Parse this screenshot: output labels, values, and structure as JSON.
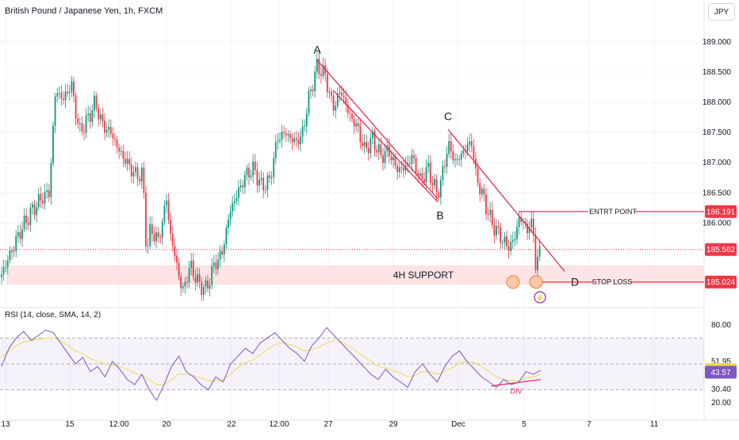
{
  "header": {
    "title": "British Pound / Japanese Yen, 1h, FXCM",
    "currency_button": "JPY"
  },
  "rsi": {
    "title": "RSI (14, close, SMA, 14, 2)"
  },
  "colors": {
    "up": "#089981",
    "down": "#f23645",
    "annotation": "#e0244a",
    "rsi_line": "#7e57c2",
    "rsi_ma": "#f2d94e",
    "support_zone": "#fbd9d9",
    "grid": "#f0f3fa",
    "price_label": "#f23645"
  },
  "chart_data": [
    {
      "type": "candlestick",
      "title": "British Pound / Japanese Yen, 1h, FXCM",
      "xlabel": "",
      "ylabel": "",
      "x_tick_labels": [
        "13",
        "15",
        "12:00",
        "20",
        "22",
        "12:00",
        "27",
        "29",
        "Dec",
        "5",
        "7",
        "11"
      ],
      "y_ticks": [
        189.0,
        188.5,
        188.0,
        187.5,
        187.0,
        186.5,
        186.0
      ],
      "y_tick_labels": [
        "189.000",
        "188.500",
        "188.000",
        "187.500",
        "187.000",
        "186.500",
        "186.000"
      ],
      "ylim": [
        184.6,
        189.3
      ],
      "grid": true,
      "price_path": [
        [
          0,
          185.1
        ],
        [
          10,
          185.4
        ],
        [
          25,
          185.85
        ],
        [
          40,
          186.2
        ],
        [
          55,
          186.45
        ],
        [
          62,
          186.5
        ],
        [
          70,
          188.2
        ],
        [
          80,
          188.05
        ],
        [
          90,
          188.3
        ],
        [
          100,
          187.5
        ],
        [
          110,
          187.7
        ],
        [
          120,
          188.0
        ],
        [
          130,
          187.6
        ],
        [
          140,
          187.5
        ],
        [
          150,
          187.2
        ],
        [
          160,
          187.0
        ],
        [
          170,
          186.8
        ],
        [
          180,
          186.8
        ],
        [
          185,
          185.5
        ],
        [
          190,
          185.9
        ],
        [
          200,
          185.7
        ],
        [
          210,
          186.4
        ],
        [
          215,
          185.8
        ],
        [
          220,
          185.5
        ],
        [
          230,
          184.85
        ],
        [
          240,
          185.3
        ],
        [
          250,
          185.0
        ],
        [
          260,
          184.9
        ],
        [
          270,
          185.3
        ],
        [
          280,
          185.5
        ],
        [
          290,
          186.2
        ],
        [
          300,
          186.5
        ],
        [
          310,
          186.8
        ],
        [
          320,
          186.9
        ],
        [
          330,
          186.6
        ],
        [
          340,
          186.7
        ],
        [
          350,
          187.4
        ],
        [
          360,
          187.5
        ],
        [
          370,
          187.35
        ],
        [
          380,
          187.4
        ],
        [
          390,
          188.1
        ],
        [
          400,
          188.6
        ],
        [
          410,
          188.45
        ],
        [
          420,
          187.9
        ],
        [
          430,
          188.2
        ],
        [
          440,
          187.8
        ],
        [
          450,
          187.6
        ],
        [
          460,
          187.2
        ],
        [
          470,
          187.4
        ],
        [
          480,
          187.1
        ],
        [
          490,
          187.2
        ],
        [
          500,
          186.9
        ],
        [
          510,
          186.9
        ],
        [
          520,
          187.1
        ],
        [
          530,
          186.7
        ],
        [
          540,
          186.9
        ],
        [
          550,
          186.5
        ],
        [
          555,
          186.6
        ],
        [
          565,
          187.3
        ],
        [
          575,
          187.0
        ],
        [
          585,
          187.2
        ],
        [
          595,
          187.35
        ],
        [
          600,
          186.8
        ],
        [
          610,
          186.4
        ],
        [
          620,
          186.0
        ],
        [
          630,
          185.8
        ],
        [
          640,
          185.6
        ],
        [
          648,
          185.7
        ],
        [
          655,
          186.1
        ],
        [
          665,
          185.9
        ],
        [
          672,
          186.0
        ],
        [
          676,
          185.2
        ],
        [
          682,
          185.65
        ]
      ],
      "annotations": {
        "points": [
          {
            "label": "A",
            "x": 400,
            "price": 188.65
          },
          {
            "label": "B",
            "x": 555,
            "price": 186.3
          },
          {
            "label": "C",
            "x": 565,
            "price": 187.55
          },
          {
            "label": "D",
            "x": 715,
            "price": 185.2
          }
        ],
        "support_zone": {
          "label": "4H SUPPORT",
          "from": 184.98,
          "to": 185.3
        },
        "entry": {
          "label": "ENTRT POINT",
          "price": 186.191
        },
        "stop_loss": {
          "label": "STOP LOSS",
          "price": 185.024
        },
        "price_markers": [
          {
            "label": "186.191",
            "price": 186.191
          },
          {
            "label": "185.562",
            "price": 185.562
          },
          {
            "label": "185.024",
            "price": 185.024
          }
        ],
        "lightning_glyph": "⚡"
      }
    },
    {
      "type": "line",
      "title": "RSI (14, close, SMA, 14, 2)",
      "xlabel": "",
      "ylabel": "",
      "ylim": [
        14,
        86
      ],
      "y_tick_labels": [
        "80.00",
        "51.95",
        "30.40",
        "20.00"
      ],
      "y_ticks": [
        80,
        51.95,
        30.4,
        20
      ],
      "bands": {
        "upper": 70,
        "middle": 50,
        "lower": 30
      },
      "current_labels": [
        {
          "label": "45.65",
          "value": 45.65,
          "color": "#f2d94e"
        },
        {
          "label": "43.57",
          "value": 43.57,
          "color": "#7e57c2"
        }
      ],
      "obscured_tick": "40.00",
      "divergence_label": "DIV",
      "series": [
        {
          "values": [
            48,
            62,
            70,
            75,
            68,
            72,
            76,
            74,
            66,
            58,
            50,
            55,
            44,
            48,
            40,
            52,
            46,
            38,
            34,
            42,
            30,
            22,
            34,
            48,
            56,
            44,
            40,
            34,
            30,
            40,
            36,
            50,
            56,
            62,
            58,
            66,
            70,
            74,
            68,
            62,
            58,
            52,
            64,
            70,
            78,
            72,
            66,
            60,
            54,
            48,
            42,
            38,
            46,
            40,
            36,
            32,
            44,
            50,
            42,
            36,
            48,
            56,
            60,
            52,
            46,
            40,
            36,
            32,
            38,
            34,
            36,
            44,
            42,
            45
          ]
        },
        {
          "values": [
            55,
            60,
            64,
            67,
            68,
            69,
            70,
            70,
            68,
            64,
            60,
            58,
            54,
            52,
            50,
            49,
            48,
            46,
            43,
            41,
            38,
            34,
            34,
            38,
            42,
            42,
            41,
            39,
            37,
            37,
            38,
            42,
            47,
            51,
            53,
            57,
            61,
            65,
            66,
            65,
            63,
            60,
            61,
            63,
            66,
            68,
            67,
            64,
            60,
            56,
            52,
            48,
            47,
            45,
            43,
            40,
            41,
            44,
            44,
            42,
            44,
            47,
            51,
            52,
            51,
            48,
            44,
            40,
            38,
            37,
            37,
            39,
            40,
            42
          ]
        }
      ]
    }
  ]
}
